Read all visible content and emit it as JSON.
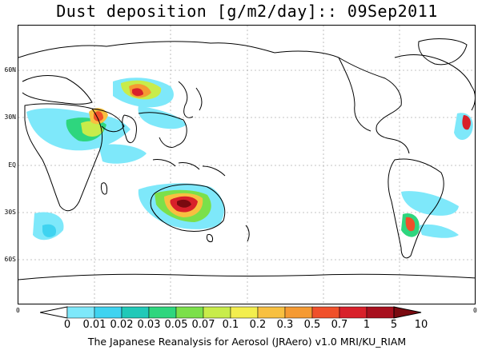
{
  "title": "Dust deposition [g/m2/day]:: 09Sep2011",
  "lat_labels": [
    "60N",
    "30N",
    "EQ",
    "30S",
    "60S"
  ],
  "lon_labels": [
    "0",
    "0"
  ],
  "colorbar": {
    "labels": [
      "0",
      "0.01",
      "0.02",
      "0.03",
      "0.05",
      "0.07",
      "0.1",
      "0.2",
      "0.3",
      "0.5",
      "0.7",
      "1",
      "5",
      "10"
    ],
    "colors": [
      "#ffffff",
      "#7ee8fa",
      "#3fd3f0",
      "#21c9b8",
      "#2ed67e",
      "#7be04a",
      "#c8ec4a",
      "#f3ee4e",
      "#f8c040",
      "#f59a32",
      "#f0502a",
      "#d8202a",
      "#a8101e",
      "#7a0a10"
    ]
  },
  "footer": "The Japanese Reanalysis for Aerosol (JRAero) v1.0 MRI/KU_RIAM"
}
